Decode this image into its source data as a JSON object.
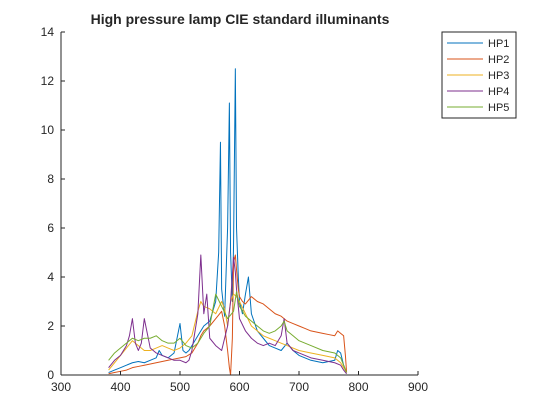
{
  "chart_data": {
    "type": "line",
    "title": "High pressure lamp CIE standard illuminants",
    "xlabel": "",
    "ylabel": "",
    "xlim": [
      300,
      900
    ],
    "ylim": [
      0,
      14
    ],
    "xticks": [
      300,
      400,
      500,
      600,
      700,
      800,
      900
    ],
    "yticks": [
      0,
      2,
      4,
      6,
      8,
      10,
      12,
      14
    ],
    "grid": false,
    "legend_position": "top-right",
    "series": [
      {
        "name": "HP1",
        "color": "#0072BD",
        "x": [
          380,
          390,
          400,
          410,
          420,
          430,
          440,
          450,
          460,
          465,
          470,
          480,
          490,
          495,
          500,
          505,
          510,
          515,
          520,
          530,
          540,
          550,
          560,
          565,
          568,
          570,
          575,
          580,
          583,
          585,
          588,
          590,
          593,
          595,
          598,
          600,
          605,
          610,
          615,
          620,
          630,
          640,
          650,
          660,
          670,
          680,
          690,
          700,
          720,
          740,
          760,
          765,
          770,
          775,
          780
        ],
        "y": [
          0.1,
          0.2,
          0.3,
          0.4,
          0.5,
          0.55,
          0.5,
          0.6,
          0.7,
          1.0,
          0.8,
          0.7,
          0.9,
          1.5,
          2.1,
          1.0,
          0.9,
          1.0,
          1.2,
          1.6,
          2.0,
          2.2,
          3.0,
          5.0,
          9.5,
          3.5,
          2.4,
          6.0,
          11.1,
          5.0,
          3.0,
          5.3,
          12.5,
          6.0,
          4.0,
          3.0,
          2.5,
          3.3,
          4.0,
          2.5,
          1.8,
          1.5,
          1.2,
          1.1,
          1.0,
          1.3,
          1.0,
          0.8,
          0.6,
          0.5,
          0.6,
          1.0,
          0.9,
          0.4,
          0.1
        ]
      },
      {
        "name": "HP2",
        "color": "#D95319",
        "x": [
          380,
          390,
          400,
          410,
          420,
          430,
          440,
          450,
          460,
          470,
          480,
          490,
          500,
          510,
          520,
          530,
          535,
          540,
          550,
          560,
          570,
          575,
          580,
          583,
          585,
          588,
          590,
          593,
          595,
          598,
          600,
          605,
          610,
          620,
          630,
          640,
          650,
          660,
          670,
          680,
          690,
          700,
          710,
          720,
          730,
          740,
          750,
          760,
          765,
          770,
          775,
          778,
          780
        ],
        "y": [
          0.05,
          0.1,
          0.15,
          0.2,
          0.3,
          0.35,
          0.4,
          0.45,
          0.5,
          0.55,
          0.6,
          0.65,
          0.7,
          0.75,
          0.9,
          1.3,
          1.6,
          1.8,
          2.0,
          2.3,
          2.6,
          2.0,
          1.0,
          0.3,
          0.0,
          1.5,
          4.6,
          4.9,
          4.3,
          3.5,
          3.2,
          3.0,
          2.9,
          3.2,
          3.0,
          2.9,
          2.7,
          2.5,
          2.4,
          2.2,
          2.1,
          2.0,
          1.9,
          1.8,
          1.75,
          1.7,
          1.65,
          1.6,
          1.8,
          1.7,
          1.6,
          0.8,
          0.1
        ]
      },
      {
        "name": "HP3",
        "color": "#EDB120",
        "x": [
          380,
          390,
          400,
          410,
          420,
          430,
          440,
          450,
          460,
          470,
          480,
          490,
          500,
          510,
          520,
          530,
          535,
          540,
          550,
          560,
          570,
          575,
          580,
          585,
          590,
          595,
          600,
          610,
          620,
          630,
          640,
          650,
          660,
          670,
          680,
          690,
          700,
          720,
          740,
          760,
          770,
          775,
          780
        ],
        "y": [
          0.2,
          0.5,
          0.8,
          1.1,
          1.4,
          1.2,
          1.0,
          1.0,
          1.1,
          1.2,
          1.1,
          1.0,
          1.1,
          1.3,
          1.6,
          2.6,
          3.0,
          2.8,
          2.7,
          2.5,
          3.0,
          2.7,
          2.0,
          3.0,
          3.3,
          3.2,
          3.0,
          2.5,
          2.0,
          1.8,
          1.6,
          1.5,
          1.4,
          1.3,
          1.2,
          1.1,
          1.0,
          0.9,
          0.8,
          0.7,
          0.5,
          0.3,
          0.1
        ]
      },
      {
        "name": "HP4",
        "color": "#7E2F8E",
        "x": [
          380,
          390,
          400,
          410,
          415,
          420,
          425,
          430,
          435,
          440,
          450,
          460,
          470,
          480,
          490,
          500,
          510,
          515,
          520,
          530,
          535,
          540,
          545,
          550,
          560,
          570,
          580,
          585,
          590,
          593,
          595,
          600,
          610,
          620,
          630,
          640,
          650,
          660,
          670,
          675,
          680,
          690,
          700,
          720,
          740,
          760,
          770,
          775,
          780
        ],
        "y": [
          0.3,
          0.6,
          0.8,
          1.2,
          1.6,
          2.3,
          1.3,
          1.0,
          1.3,
          2.3,
          1.1,
          0.9,
          0.8,
          0.7,
          0.6,
          0.6,
          0.5,
          0.6,
          1.0,
          2.5,
          4.9,
          2.5,
          3.3,
          1.5,
          1.2,
          1.0,
          2.0,
          3.0,
          4.8,
          4.2,
          3.5,
          2.3,
          1.8,
          1.5,
          1.3,
          1.2,
          1.3,
          1.2,
          1.6,
          2.3,
          1.3,
          1.0,
          0.9,
          0.7,
          0.6,
          0.5,
          0.4,
          0.2,
          0.05
        ]
      },
      {
        "name": "HP5",
        "color": "#77AC30",
        "x": [
          380,
          390,
          400,
          410,
          420,
          430,
          440,
          450,
          460,
          470,
          480,
          490,
          500,
          510,
          520,
          530,
          540,
          550,
          560,
          570,
          580,
          590,
          595,
          600,
          610,
          620,
          630,
          640,
          650,
          660,
          670,
          675,
          680,
          690,
          700,
          720,
          740,
          760,
          770,
          775,
          780
        ],
        "y": [
          0.6,
          0.9,
          1.1,
          1.3,
          1.5,
          1.4,
          1.5,
          1.5,
          1.6,
          1.4,
          1.3,
          1.3,
          1.5,
          1.2,
          1.1,
          1.3,
          1.7,
          2.0,
          3.3,
          2.8,
          2.3,
          2.6,
          3.4,
          2.8,
          2.4,
          2.2,
          2.0,
          1.8,
          1.7,
          1.8,
          2.0,
          2.2,
          1.8,
          1.6,
          1.4,
          1.2,
          1.0,
          0.9,
          0.7,
          0.4,
          0.1
        ]
      }
    ]
  }
}
